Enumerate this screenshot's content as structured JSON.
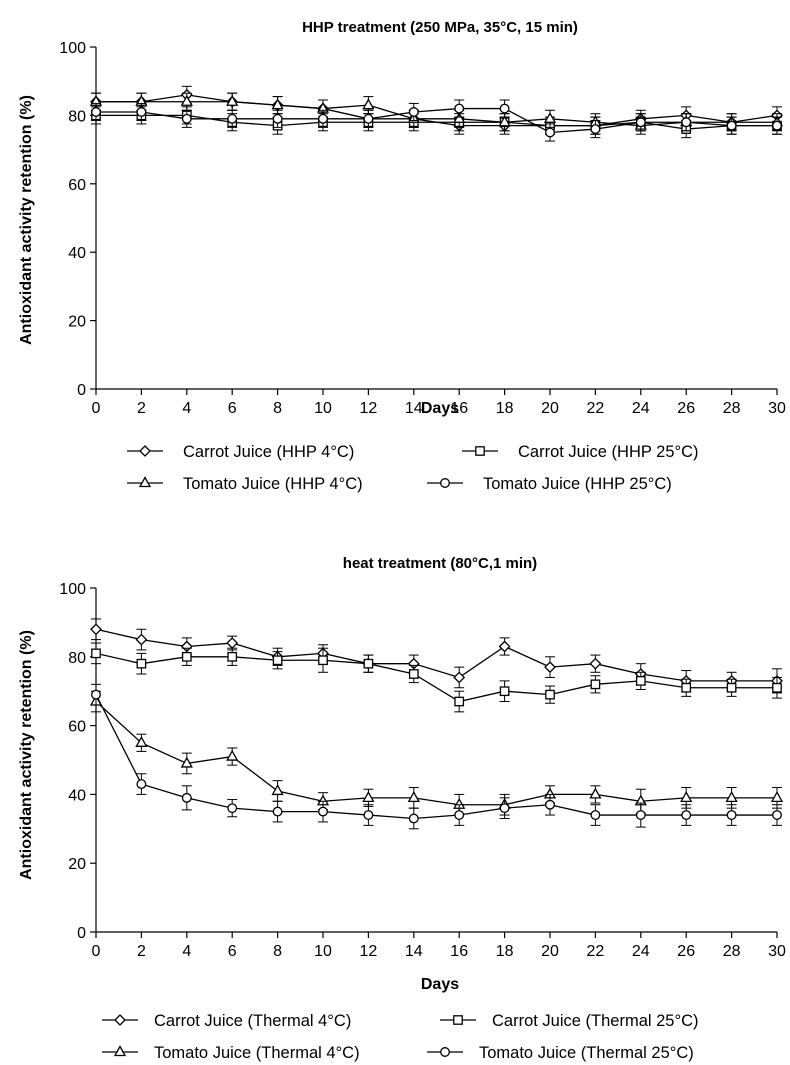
{
  "chart_data": [
    {
      "type": "line",
      "title": "HHP treatment (250 MPa, 35°C, 15 min)",
      "xlabel": "Days",
      "ylabel": "Antioxidant activity retention (%)",
      "xlim": [
        0,
        30
      ],
      "ylim": [
        0,
        100
      ],
      "xticks": [
        "0",
        "2",
        "4",
        "6",
        "8",
        "10",
        "12",
        "14",
        "16",
        "18",
        "20",
        "22",
        "24",
        "26",
        "28",
        "30"
      ],
      "yticks": [
        "0",
        "20",
        "40",
        "60",
        "80",
        "100"
      ],
      "x": [
        0,
        2,
        4,
        6,
        8,
        10,
        12,
        14,
        16,
        18,
        20,
        22,
        24,
        26,
        28,
        30
      ],
      "grid": false,
      "legend_position": "bottom",
      "series": [
        {
          "name": "Carrot Juice (HHP 4°C)",
          "marker": "diamond",
          "values": [
            84,
            84,
            86,
            84,
            83,
            82,
            79,
            79,
            77,
            77,
            77,
            77,
            79,
            80,
            78,
            80
          ],
          "errors": [
            2.5,
            2.5,
            2.5,
            2.5,
            2.5,
            2.5,
            2.5,
            2.5,
            2.5,
            2.5,
            2.5,
            2.5,
            2.5,
            2.5,
            2.5,
            2.5
          ]
        },
        {
          "name": "Carrot Juice (HHP 25°C)",
          "marker": "square",
          "values": [
            80,
            80,
            80,
            78,
            77,
            78,
            78,
            78,
            78,
            78,
            77,
            77,
            78,
            76,
            77,
            77
          ],
          "errors": [
            2.5,
            2.5,
            2.5,
            2.5,
            2.5,
            2.5,
            2.5,
            2.5,
            2.5,
            2.5,
            2.5,
            2.5,
            2.5,
            2.5,
            2.5,
            2.5
          ]
        },
        {
          "name": "Tomato Juice (HHP 4°C)",
          "marker": "triangle",
          "values": [
            84,
            84,
            84,
            84,
            83,
            82,
            83,
            79,
            79,
            78,
            79,
            78,
            77,
            78,
            78,
            78
          ],
          "errors": [
            2.5,
            2.5,
            2.5,
            2.5,
            2.5,
            2.5,
            2.5,
            2.5,
            2.5,
            2.5,
            2.5,
            2.5,
            2.5,
            2.5,
            2.5,
            2.5
          ]
        },
        {
          "name": "Tomato Juice (HHP 25°C)",
          "marker": "circle",
          "values": [
            81,
            81,
            79,
            79,
            79,
            79,
            79,
            81,
            82,
            82,
            75,
            76,
            78,
            78,
            77,
            77
          ],
          "errors": [
            2.5,
            2.5,
            2.5,
            2.5,
            2.5,
            2.5,
            2.5,
            2.5,
            2.5,
            2.5,
            2.5,
            2.5,
            2.5,
            2.5,
            2.5,
            2.5
          ]
        }
      ]
    },
    {
      "type": "line",
      "title": "heat treatment (80°C,1 min)",
      "xlabel": "Days",
      "ylabel": "Antioxidant activity retention (%)",
      "xlim": [
        0,
        30
      ],
      "ylim": [
        0,
        100
      ],
      "xticks": [
        "0",
        "2",
        "4",
        "6",
        "8",
        "10",
        "12",
        "14",
        "16",
        "18",
        "20",
        "22",
        "24",
        "26",
        "28",
        "30"
      ],
      "yticks": [
        "0",
        "20",
        "40",
        "60",
        "80",
        "100"
      ],
      "x": [
        0,
        2,
        4,
        6,
        8,
        10,
        12,
        14,
        16,
        18,
        20,
        22,
        24,
        26,
        28,
        30
      ],
      "grid": false,
      "legend_position": "bottom",
      "series": [
        {
          "name": "Carrot Juice (Thermal 4°C)",
          "marker": "diamond",
          "values": [
            88,
            85,
            83,
            84,
            80,
            81,
            78,
            78,
            74,
            83,
            77,
            78,
            75,
            73,
            73,
            73
          ],
          "errors": [
            3,
            3,
            2.5,
            2,
            2.5,
            2.5,
            2.5,
            2.5,
            3,
            2.5,
            3,
            2.5,
            3,
            3,
            2.5,
            3.5
          ]
        },
        {
          "name": "Carrot Juice (Thermal 25°C)",
          "marker": "square",
          "values": [
            81,
            78,
            80,
            80,
            79,
            79,
            78,
            75,
            67,
            70,
            69,
            72,
            73,
            71,
            71,
            71
          ],
          "errors": [
            3,
            3,
            2.5,
            2.5,
            2.5,
            3.5,
            2.5,
            2.5,
            3,
            3,
            2.5,
            2.5,
            2.5,
            2.5,
            2.5,
            3
          ]
        },
        {
          "name": "Tomato Juice (Thermal 4°C)",
          "marker": "triangle",
          "values": [
            67,
            55,
            49,
            51,
            41,
            38,
            39,
            39,
            37,
            37,
            40,
            40,
            38,
            39,
            39,
            39
          ],
          "errors": [
            3,
            2.5,
            3,
            2.5,
            3,
            2.5,
            2.5,
            3,
            3,
            3,
            2.5,
            2.5,
            3.5,
            3,
            3,
            3
          ]
        },
        {
          "name": "Tomato Juice (Thermal 25°C)",
          "marker": "circle",
          "values": [
            69,
            43,
            39,
            36,
            35,
            35,
            34,
            33,
            34,
            36,
            37,
            34,
            34,
            34,
            34,
            34
          ],
          "errors": [
            3,
            3,
            3.5,
            2.5,
            3,
            3,
            3,
            3,
            3,
            3,
            3,
            3,
            3.5,
            3,
            3,
            3
          ]
        }
      ]
    }
  ]
}
